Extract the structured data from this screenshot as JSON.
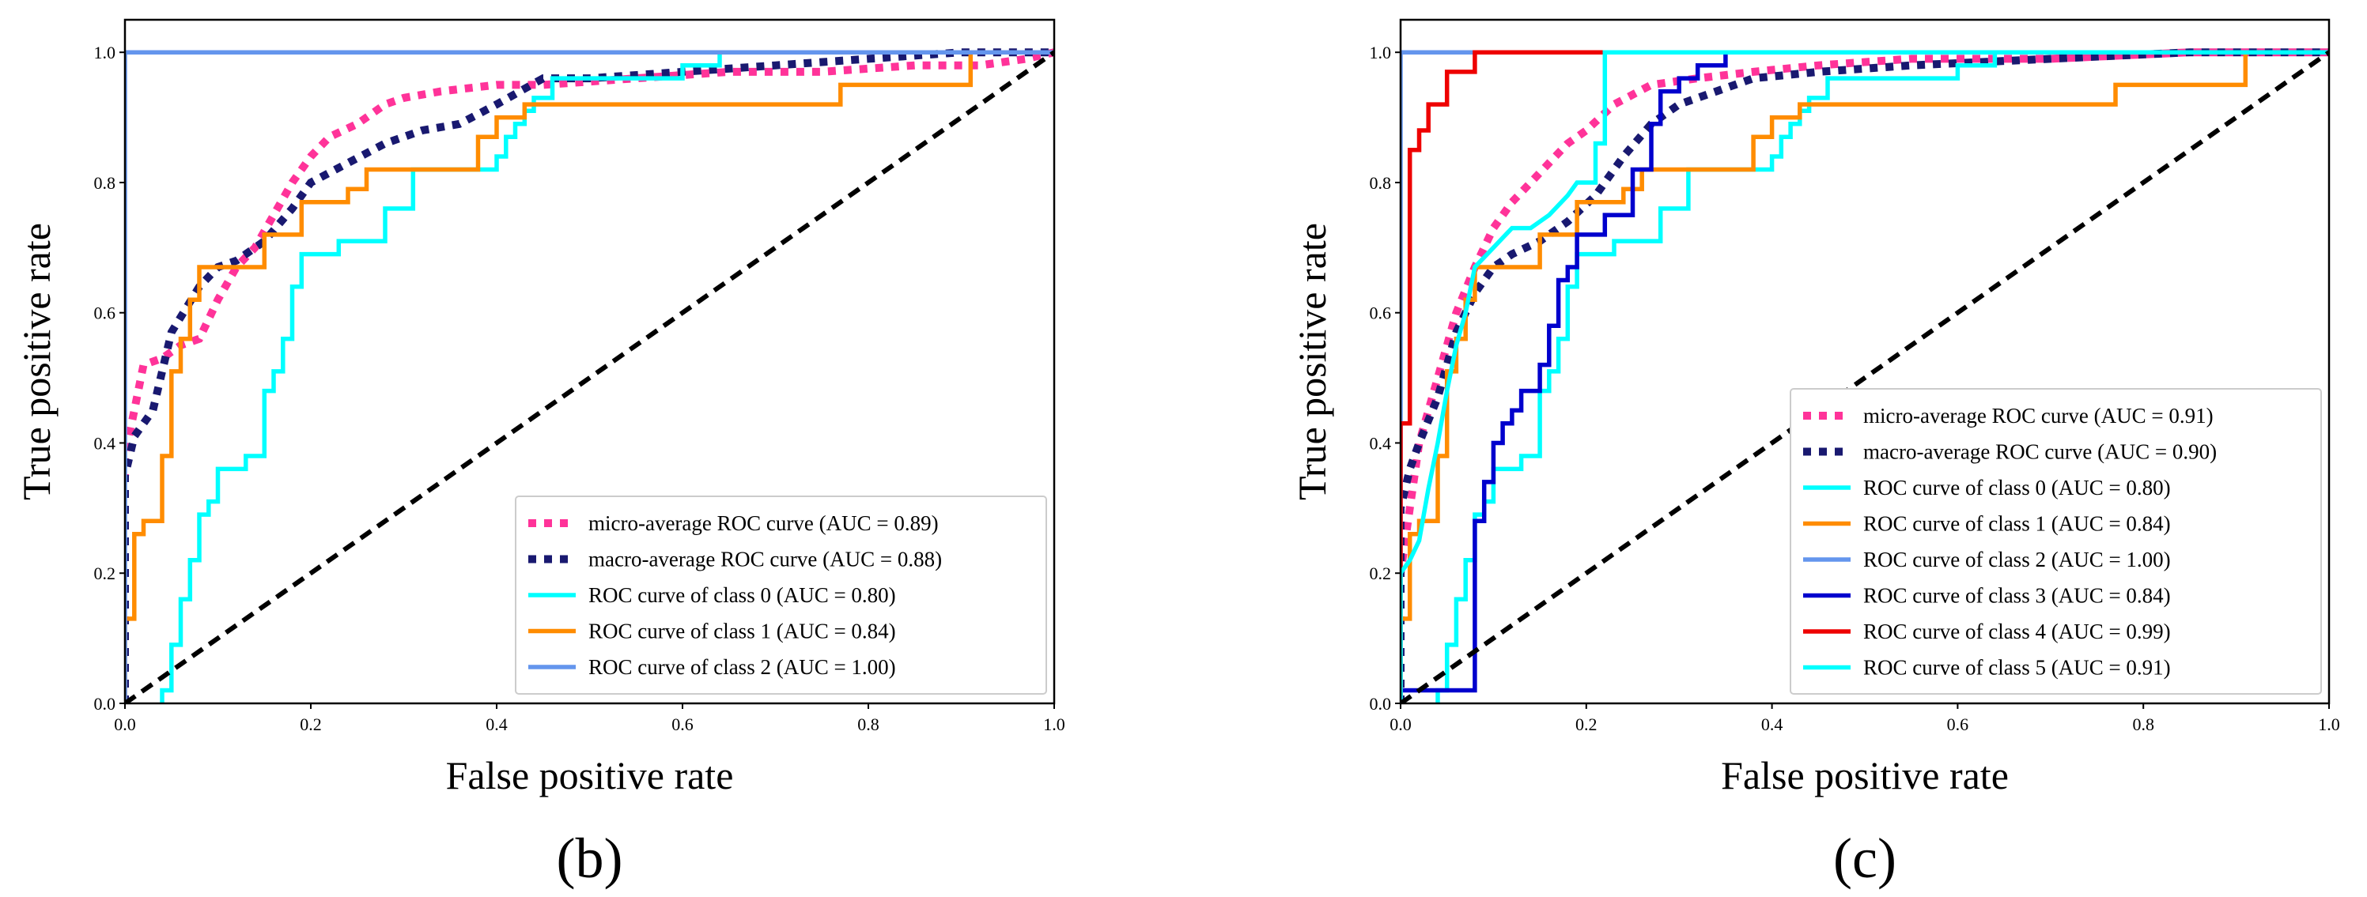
{
  "chart_data": [
    {
      "type": "line",
      "panel_label": "(b)",
      "xlabel": "False positive rate",
      "ylabel": "True positive rate",
      "xlim": [
        0.0,
        1.0
      ],
      "ylim": [
        0.0,
        1.05
      ],
      "xticks": [
        "0.0",
        "0.2",
        "0.4",
        "0.6",
        "0.8",
        "1.0"
      ],
      "yticks": [
        "0.0",
        "0.2",
        "0.4",
        "0.6",
        "0.8",
        "1.0"
      ],
      "grid": false,
      "legend_position": "lower-right",
      "series": [
        {
          "name": "micro-average ROC curve (AUC = 0.89)",
          "color": "#ff3399",
          "style": "dotted",
          "x": [
            0,
            0,
            0.01,
            0.02,
            0.04,
            0.06,
            0.08,
            0.1,
            0.12,
            0.14,
            0.16,
            0.18,
            0.2,
            0.22,
            0.25,
            0.28,
            0.3,
            0.34,
            0.4,
            0.45,
            0.55,
            0.65,
            0.75,
            0.85,
            0.92,
            0.97,
            1.0
          ],
          "y": [
            0,
            0.38,
            0.45,
            0.52,
            0.53,
            0.55,
            0.56,
            0.62,
            0.67,
            0.7,
            0.75,
            0.8,
            0.84,
            0.87,
            0.89,
            0.92,
            0.93,
            0.94,
            0.95,
            0.95,
            0.96,
            0.97,
            0.97,
            0.98,
            0.98,
            0.99,
            1.0
          ]
        },
        {
          "name": "macro-average ROC curve (AUC = 0.88)",
          "color": "#191970",
          "style": "dotted",
          "x": [
            0,
            0,
            0.01,
            0.03,
            0.05,
            0.08,
            0.1,
            0.12,
            0.15,
            0.18,
            0.2,
            0.24,
            0.28,
            0.32,
            0.36,
            0.4,
            0.45,
            0.5,
            0.6,
            0.7,
            0.8,
            0.9,
            0.95,
            1.0
          ],
          "y": [
            0,
            0.35,
            0.41,
            0.45,
            0.57,
            0.64,
            0.67,
            0.68,
            0.71,
            0.76,
            0.8,
            0.83,
            0.86,
            0.88,
            0.89,
            0.92,
            0.96,
            0.96,
            0.97,
            0.98,
            0.99,
            1.0,
            1.0,
            1.0
          ]
        },
        {
          "name": "ROC curve of class 0 (AUC = 0.80)",
          "color": "#00ffff",
          "style": "solid",
          "x": [
            0.04,
            0.04,
            0.05,
            0.05,
            0.06,
            0.06,
            0.07,
            0.07,
            0.08,
            0.08,
            0.09,
            0.09,
            0.1,
            0.1,
            0.13,
            0.13,
            0.15,
            0.15,
            0.16,
            0.16,
            0.17,
            0.17,
            0.18,
            0.18,
            0.19,
            0.19,
            0.23,
            0.23,
            0.28,
            0.28,
            0.31,
            0.31,
            0.4,
            0.4,
            0.41,
            0.41,
            0.42,
            0.42,
            0.43,
            0.43,
            0.44,
            0.44,
            0.46,
            0.46,
            0.6,
            0.6,
            0.64,
            0.64,
            1.0
          ],
          "y": [
            0,
            0.02,
            0.02,
            0.09,
            0.09,
            0.16,
            0.16,
            0.22,
            0.22,
            0.29,
            0.29,
            0.31,
            0.31,
            0.36,
            0.36,
            0.38,
            0.38,
            0.48,
            0.48,
            0.51,
            0.51,
            0.56,
            0.56,
            0.64,
            0.64,
            0.69,
            0.69,
            0.71,
            0.71,
            0.76,
            0.76,
            0.82,
            0.82,
            0.84,
            0.84,
            0.87,
            0.87,
            0.89,
            0.89,
            0.91,
            0.91,
            0.93,
            0.93,
            0.96,
            0.96,
            0.98,
            0.98,
            1.0,
            1.0
          ]
        },
        {
          "name": "ROC curve of class 1 (AUC = 0.84)",
          "color": "#ff8c00",
          "style": "solid",
          "x": [
            0,
            0,
            0.01,
            0.01,
            0.02,
            0.02,
            0.04,
            0.04,
            0.05,
            0.05,
            0.06,
            0.06,
            0.07,
            0.07,
            0.08,
            0.08,
            0.15,
            0.15,
            0.19,
            0.19,
            0.24,
            0.24,
            0.26,
            0.26,
            0.38,
            0.38,
            0.4,
            0.4,
            0.43,
            0.43,
            0.77,
            0.77,
            0.91,
            0.91,
            1.0
          ],
          "y": [
            0,
            0.13,
            0.13,
            0.26,
            0.26,
            0.28,
            0.28,
            0.38,
            0.38,
            0.51,
            0.51,
            0.56,
            0.56,
            0.62,
            0.62,
            0.67,
            0.67,
            0.72,
            0.72,
            0.77,
            0.77,
            0.79,
            0.79,
            0.82,
            0.82,
            0.87,
            0.87,
            0.9,
            0.9,
            0.92,
            0.92,
            0.95,
            0.95,
            1.0,
            1.0
          ]
        },
        {
          "name": "ROC curve of class 2 (AUC = 1.00)",
          "color": "#6495ed",
          "style": "solid",
          "x": [
            0,
            0,
            1.0
          ],
          "y": [
            0,
            1.0,
            1.0
          ]
        },
        {
          "name": "chance",
          "color": "#000000",
          "style": "dashed",
          "in_legend": false,
          "x": [
            0,
            1
          ],
          "y": [
            0,
            1
          ]
        }
      ]
    },
    {
      "type": "line",
      "panel_label": "(c)",
      "xlabel": "False positive rate",
      "ylabel": "True positive rate",
      "xlim": [
        0.0,
        1.0
      ],
      "ylim": [
        0.0,
        1.05
      ],
      "xticks": [
        "0.0",
        "0.2",
        "0.4",
        "0.6",
        "0.8",
        "1.0"
      ],
      "yticks": [
        "0.0",
        "0.2",
        "0.4",
        "0.6",
        "0.8",
        "1.0"
      ],
      "grid": false,
      "legend_position": "lower-right",
      "series": [
        {
          "name": "micro-average ROC curve (AUC = 0.91)",
          "color": "#ff3399",
          "style": "dotted",
          "x": [
            0,
            0,
            0.01,
            0.02,
            0.04,
            0.06,
            0.08,
            0.1,
            0.12,
            0.14,
            0.16,
            0.18,
            0.2,
            0.23,
            0.27,
            0.32,
            0.38,
            0.45,
            0.55,
            0.7,
            0.85,
            1.0
          ],
          "y": [
            0,
            0.2,
            0.3,
            0.4,
            0.5,
            0.6,
            0.67,
            0.73,
            0.77,
            0.8,
            0.83,
            0.86,
            0.88,
            0.92,
            0.95,
            0.96,
            0.97,
            0.98,
            0.99,
            0.99,
            1.0,
            1.0
          ]
        },
        {
          "name": "macro-average ROC curve (AUC = 0.90)",
          "color": "#191970",
          "style": "dotted",
          "x": [
            0,
            0,
            0.01,
            0.02,
            0.04,
            0.06,
            0.08,
            0.1,
            0.12,
            0.15,
            0.18,
            0.21,
            0.24,
            0.27,
            0.3,
            0.34,
            0.38,
            0.45,
            0.55,
            0.7,
            0.85,
            1.0
          ],
          "y": [
            0,
            0.3,
            0.36,
            0.4,
            0.47,
            0.57,
            0.63,
            0.67,
            0.69,
            0.71,
            0.74,
            0.78,
            0.84,
            0.89,
            0.92,
            0.94,
            0.96,
            0.97,
            0.98,
            0.99,
            1.0,
            1.0
          ]
        },
        {
          "name": "ROC curve of class 0 (AUC = 0.80)",
          "color": "#00ffff",
          "style": "solid",
          "x": [
            0.04,
            0.04,
            0.05,
            0.05,
            0.06,
            0.06,
            0.07,
            0.07,
            0.08,
            0.08,
            0.09,
            0.09,
            0.1,
            0.1,
            0.13,
            0.13,
            0.15,
            0.15,
            0.16,
            0.16,
            0.17,
            0.17,
            0.18,
            0.18,
            0.19,
            0.19,
            0.23,
            0.23,
            0.28,
            0.28,
            0.31,
            0.31,
            0.4,
            0.4,
            0.41,
            0.41,
            0.42,
            0.42,
            0.43,
            0.43,
            0.44,
            0.44,
            0.46,
            0.46,
            0.6,
            0.6,
            0.64,
            0.64,
            1.0
          ],
          "y": [
            0,
            0.02,
            0.02,
            0.09,
            0.09,
            0.16,
            0.16,
            0.22,
            0.22,
            0.29,
            0.29,
            0.31,
            0.31,
            0.36,
            0.36,
            0.38,
            0.38,
            0.48,
            0.48,
            0.51,
            0.51,
            0.56,
            0.56,
            0.64,
            0.64,
            0.69,
            0.69,
            0.71,
            0.71,
            0.76,
            0.76,
            0.82,
            0.82,
            0.84,
            0.84,
            0.87,
            0.87,
            0.89,
            0.89,
            0.91,
            0.91,
            0.93,
            0.93,
            0.96,
            0.96,
            0.98,
            0.98,
            1.0,
            1.0
          ]
        },
        {
          "name": "ROC curve of class 1 (AUC = 0.84)",
          "color": "#ff8c00",
          "style": "solid",
          "x": [
            0,
            0,
            0.01,
            0.01,
            0.02,
            0.02,
            0.04,
            0.04,
            0.05,
            0.05,
            0.06,
            0.06,
            0.07,
            0.07,
            0.08,
            0.08,
            0.15,
            0.15,
            0.19,
            0.19,
            0.24,
            0.24,
            0.26,
            0.26,
            0.38,
            0.38,
            0.4,
            0.4,
            0.43,
            0.43,
            0.77,
            0.77,
            0.91,
            0.91,
            1.0
          ],
          "y": [
            0,
            0.13,
            0.13,
            0.26,
            0.26,
            0.28,
            0.28,
            0.38,
            0.38,
            0.51,
            0.51,
            0.56,
            0.56,
            0.62,
            0.62,
            0.67,
            0.67,
            0.72,
            0.72,
            0.77,
            0.77,
            0.79,
            0.79,
            0.82,
            0.82,
            0.87,
            0.87,
            0.9,
            0.9,
            0.92,
            0.92,
            0.95,
            0.95,
            1.0,
            1.0
          ]
        },
        {
          "name": "ROC curve of class 2 (AUC = 1.00)",
          "color": "#6495ed",
          "style": "solid",
          "x": [
            0,
            0,
            1.0
          ],
          "y": [
            0,
            1.0,
            1.0
          ]
        },
        {
          "name": "ROC curve of class 3 (AUC = 0.84)",
          "color": "#0000cd",
          "style": "solid",
          "x": [
            0,
            0,
            0.08,
            0.08,
            0.09,
            0.09,
            0.1,
            0.1,
            0.11,
            0.11,
            0.12,
            0.12,
            0.13,
            0.13,
            0.15,
            0.15,
            0.16,
            0.16,
            0.17,
            0.17,
            0.18,
            0.18,
            0.19,
            0.19,
            0.22,
            0.22,
            0.25,
            0.25,
            0.27,
            0.27,
            0.28,
            0.28,
            0.3,
            0.3,
            0.32,
            0.32,
            0.35,
            0.35,
            1.0
          ],
          "y": [
            0,
            0.02,
            0.02,
            0.28,
            0.28,
            0.34,
            0.34,
            0.4,
            0.4,
            0.43,
            0.43,
            0.45,
            0.45,
            0.48,
            0.48,
            0.52,
            0.52,
            0.58,
            0.58,
            0.65,
            0.65,
            0.67,
            0.67,
            0.72,
            0.72,
            0.75,
            0.75,
            0.82,
            0.82,
            0.89,
            0.89,
            0.94,
            0.94,
            0.96,
            0.96,
            0.98,
            0.98,
            1.0,
            1.0
          ]
        },
        {
          "name": "ROC curve of class 4 (AUC = 0.99)",
          "color": "#ee0000",
          "style": "solid",
          "x": [
            0,
            0,
            0.01,
            0.01,
            0.02,
            0.02,
            0.03,
            0.03,
            0.05,
            0.05,
            0.08,
            0.08,
            1.0
          ],
          "y": [
            0,
            0.43,
            0.43,
            0.85,
            0.85,
            0.88,
            0.88,
            0.92,
            0.92,
            0.97,
            0.97,
            1.0,
            1.0
          ]
        },
        {
          "name": "ROC curve of class 5 (AUC = 0.91)",
          "color": "#00ffff",
          "style": "solid",
          "x": [
            0,
            0,
            0.01,
            0.02,
            0.03,
            0.04,
            0.05,
            0.06,
            0.07,
            0.08,
            0.1,
            0.12,
            0.14,
            0.16,
            0.18,
            0.19,
            0.21,
            0.21,
            0.22,
            0.22,
            1.0
          ],
          "y": [
            0,
            0.2,
            0.22,
            0.25,
            0.33,
            0.4,
            0.48,
            0.55,
            0.6,
            0.67,
            0.7,
            0.73,
            0.73,
            0.75,
            0.78,
            0.8,
            0.8,
            0.86,
            0.86,
            1.0,
            1.0
          ]
        },
        {
          "name": "chance",
          "color": "#000000",
          "style": "dashed",
          "in_legend": false,
          "x": [
            0,
            1
          ],
          "y": [
            0,
            1
          ]
        }
      ]
    }
  ]
}
